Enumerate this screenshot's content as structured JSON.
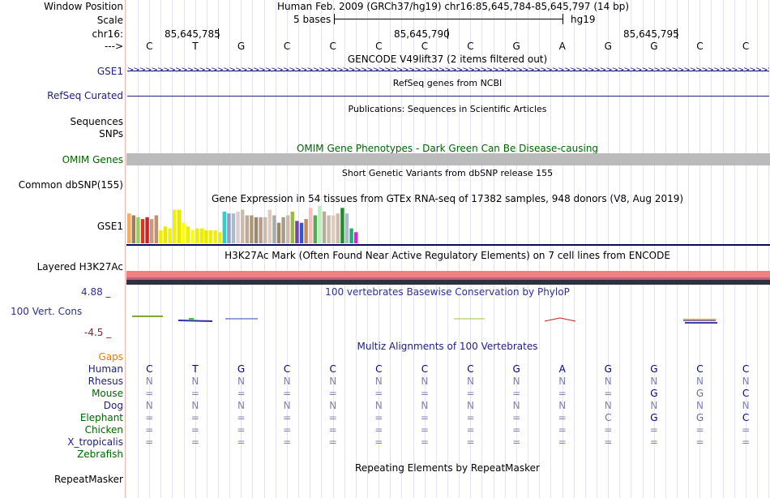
{
  "header": {
    "window_position_label": "Window Position",
    "window_position_value": "Human Feb. 2009 (GRCh37/hg19)   chr16:85,645,784-85,645,797 (14 bp)",
    "scale_label": "Scale",
    "scale_text": "5 bases",
    "scale_assembly": "hg19",
    "chrom_label": "chr16:",
    "coords": [
      "85,645,785",
      "85,645,790",
      "85,645,795"
    ],
    "arrow_label": "--->",
    "sequence": [
      "C",
      "T",
      "G",
      "C",
      "C",
      "C",
      "C",
      "C",
      "G",
      "A",
      "G",
      "G",
      "C",
      "C"
    ]
  },
  "tracks": {
    "gencode": {
      "title": "GENCODE V49lift37 (2 items filtered out)",
      "label": "GSE1"
    },
    "refseq": {
      "title": "RefSeq genes from NCBI",
      "label": "RefSeq Curated"
    },
    "publications": {
      "title": "Publications: Sequences in Scientific Articles",
      "label": "Sequences"
    },
    "snps": {
      "label": "SNPs"
    },
    "omim": {
      "title": "OMIM Gene Phenotypes - Dark Green Can Be Disease-causing",
      "label": "OMIM Genes"
    },
    "dbsnp": {
      "title": "Short Genetic Variants from dbSNP release 155",
      "label": "Common dbSNP(155)"
    },
    "gtex": {
      "title": "Gene Expression in 54 tissues from GTEx RNA-seq of 17382 samples, 948 donors (V8, Aug 2019)",
      "label": "GSE1"
    },
    "h3k27ac": {
      "title": "H3K27Ac Mark (Often Found Near Active Regulatory Elements) on 7 cell lines from ENCODE",
      "label": "Layered H3K27Ac"
    },
    "phylop": {
      "title": "100 vertebrates Basewise Conservation by PhyloP",
      "label": "100 Vert. Cons",
      "max": "4.88 _",
      "min": "-4.5 _"
    },
    "multiz": {
      "title": "Multiz Alignments of 100 Vertebrates"
    },
    "repeatmasker": {
      "title": "Repeating Elements by RepeatMasker",
      "label": "RepeatMasker"
    }
  },
  "alignment": {
    "gaps_label": "Gaps",
    "species": [
      {
        "name": "Human",
        "bases": [
          "C",
          "T",
          "G",
          "C",
          "C",
          "C",
          "C",
          "C",
          "G",
          "A",
          "G",
          "G",
          "C",
          "C"
        ]
      },
      {
        "name": "Rhesus",
        "bases": [
          "N",
          "N",
          "N",
          "N",
          "N",
          "N",
          "N",
          "N",
          "N",
          "N",
          "N",
          "N",
          "N",
          "N"
        ]
      },
      {
        "name": "Mouse",
        "bases": [
          "=",
          "=",
          "=",
          "=",
          "=",
          "=",
          "=",
          "=",
          "=",
          "=",
          "=",
          "G",
          "G",
          "C"
        ]
      },
      {
        "name": "Dog",
        "bases": [
          "N",
          "N",
          "N",
          "N",
          "N",
          "N",
          "N",
          "N",
          "N",
          "N",
          "N",
          "N",
          "N",
          "N"
        ]
      },
      {
        "name": "Elephant",
        "bases": [
          "=",
          "=",
          "=",
          "=",
          "=",
          "=",
          "=",
          "=",
          "=",
          "=",
          "C",
          "G",
          "G",
          "C"
        ]
      },
      {
        "name": "Chicken",
        "bases": [
          "=",
          "=",
          "=",
          "=",
          "=",
          "=",
          "=",
          "=",
          "=",
          "=",
          "=",
          "=",
          "=",
          "="
        ]
      },
      {
        "name": "X_tropicalis",
        "bases": [
          "=",
          "=",
          "=",
          "=",
          "=",
          "=",
          "=",
          "=",
          "=",
          "=",
          "=",
          "=",
          "=",
          "="
        ]
      },
      {
        "name": "Zebrafish",
        "bases": []
      }
    ]
  },
  "gtex_colors": [
    "#ffaa55",
    "#9a7f5f",
    "#99cc66",
    "#dd3322",
    "#cc2222",
    "#cc9977",
    "#c09070",
    "#eeee00",
    "#e8e800",
    "#f0f000",
    "#f0f000",
    "#e8e800",
    "#ffff00",
    "#eeee00",
    "#ffff00",
    "#eeee00",
    "#eeee00",
    "#e8e800",
    "#eeee00",
    "#f0f000",
    "#eeee00",
    "#33cccc",
    "#9999bb",
    "#aabbcc",
    "#ddcccc",
    "#ccbbaa",
    "#bbaa99",
    "#aa9977",
    "#998877",
    "#bb9988",
    "#ccbbaa",
    "#ddccbb",
    "#aaaaaa",
    "#998866",
    "#aa9988",
    "#ccbbaa",
    "#99bb44",
    "#7744aa",
    "#3355cc",
    "#cc8855",
    "#ffbbbb",
    "#55aa55",
    "#bbeebb",
    "#bbaa99",
    "#ccbbaa",
    "#ddccbb",
    "#ccbbaa",
    "#228833",
    "#aabbcc",
    "#22aa77",
    "#dd22dd"
  ],
  "gtex_values": [
    0.8,
    0.75,
    0.7,
    0.65,
    0.7,
    0.65,
    0.75,
    0.35,
    0.45,
    0.4,
    0.9,
    0.9,
    0.55,
    0.45,
    0.35,
    0.4,
    0.4,
    0.35,
    0.35,
    0.35,
    0.3,
    0.85,
    0.8,
    0.8,
    0.85,
    0.9,
    0.75,
    0.75,
    0.7,
    0.7,
    0.7,
    0.9,
    0.75,
    0.55,
    0.7,
    0.75,
    0.85,
    0.6,
    0.55,
    0.65,
    0.95,
    0.75,
    1.0,
    0.85,
    0.75,
    0.75,
    0.8,
    0.95,
    0.8,
    0.4,
    0.3
  ]
}
